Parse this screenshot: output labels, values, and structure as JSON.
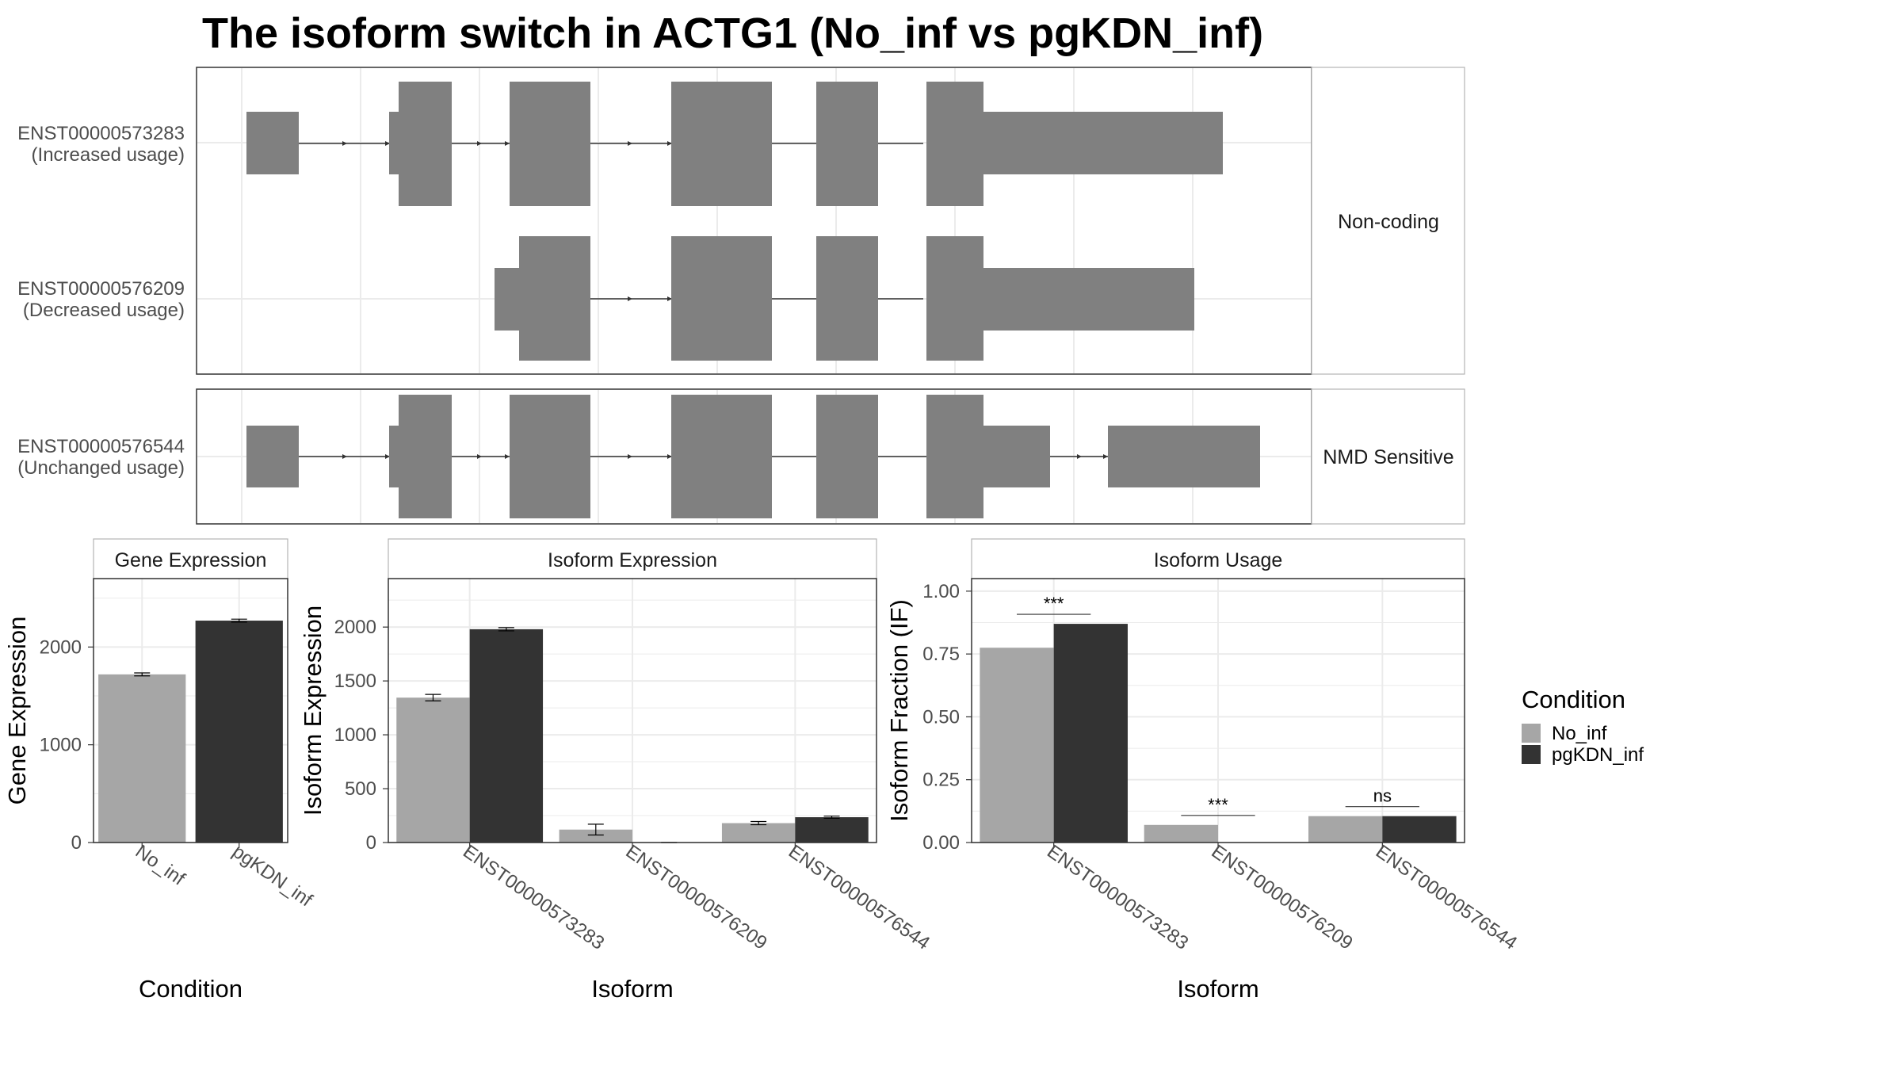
{
  "title": "The isoform switch in ACTG1 (No_inf vs pgKDN_inf)",
  "colors": {
    "No_inf": "#a6a6a6",
    "pgKDN_inf": "#333333",
    "exon": "#808080",
    "grid": "#ebebeb",
    "strip": "#ffffff"
  },
  "structure": {
    "facets": [
      {
        "label": "Non-coding",
        "isoforms": [
          {
            "id": "ENST00000573283",
            "usage": "(Increased usage)"
          },
          {
            "id": "ENST00000576209",
            "usage": "(Decreased usage)"
          }
        ]
      },
      {
        "label": "NMD Sensitive",
        "isoforms": [
          {
            "id": "ENST00000576544",
            "usage": "(Unchanged usage)"
          }
        ]
      }
    ]
  },
  "chart_data": [
    {
      "type": "bar",
      "title": "Gene Expression",
      "xlabel": "Condition",
      "ylabel": "Gene Expression",
      "categories": [
        "No_inf",
        "pgKDN_inf"
      ],
      "values": [
        1720,
        2270
      ],
      "errors": [
        15,
        15
      ],
      "ylim": [
        0,
        2700
      ],
      "yticks": [
        0,
        1000,
        2000
      ],
      "grid": true
    },
    {
      "type": "bar",
      "title": "Isoform Expression",
      "xlabel": "Isoform",
      "ylabel": "Isoform Expression",
      "categories": [
        "ENST00000573283",
        "ENST00000576209",
        "ENST00000576544"
      ],
      "series": [
        {
          "name": "No_inf",
          "values": [
            1345,
            120,
            180
          ],
          "errors": [
            30,
            50,
            15
          ]
        },
        {
          "name": "pgKDN_inf",
          "values": [
            1980,
            0,
            235
          ],
          "errors": [
            15,
            0,
            10
          ]
        }
      ],
      "ylim": [
        0,
        2450
      ],
      "yticks": [
        0,
        500,
        1000,
        1500,
        2000
      ],
      "grid": true
    },
    {
      "type": "bar",
      "title": "Isoform Usage",
      "xlabel": "Isoform",
      "ylabel": "Isoform Fraction (IF)",
      "categories": [
        "ENST00000573283",
        "ENST00000576209",
        "ENST00000576544"
      ],
      "series": [
        {
          "name": "No_inf",
          "values": [
            0.775,
            0.07,
            0.105
          ]
        },
        {
          "name": "pgKDN_inf",
          "values": [
            0.87,
            0.0,
            0.105
          ]
        }
      ],
      "significance": [
        "***",
        "***",
        "ns"
      ],
      "ylim": [
        0,
        1.05
      ],
      "yticks": [
        "0.00",
        "0.25",
        "0.50",
        "0.75",
        "1.00"
      ],
      "grid": true
    }
  ],
  "legend": {
    "title": "Condition",
    "entries": [
      "No_inf",
      "pgKDN_inf"
    ],
    "position": "right"
  }
}
